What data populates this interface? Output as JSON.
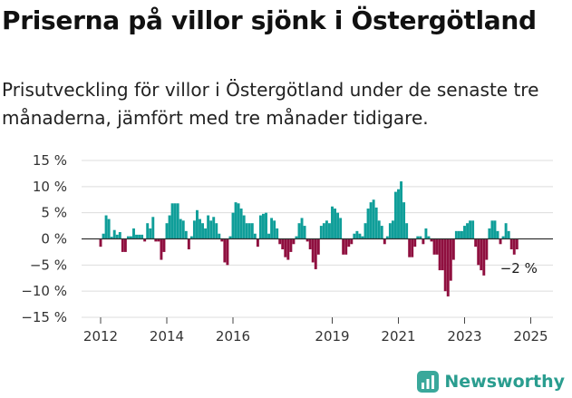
{
  "title": "Priserna på villor sjönk i Östergötland",
  "subtitle": "Prisutveckling för villor i Östergötland under de senaste tre månaderna, jämfört med tre månader tidigare.",
  "brand": {
    "name": "Newsworthy",
    "icon": "newsworthy-logo-icon"
  },
  "colors": {
    "positive": "#0f9e99",
    "negative": "#8f0f3f",
    "grid": "#dddddd",
    "axis": "#333333"
  },
  "chart_data": {
    "type": "bar",
    "title": "",
    "xlabel": "",
    "ylabel": "",
    "unit": "%",
    "ylim": [
      -15,
      15
    ],
    "y_ticks": [
      {
        "value": 15,
        "label": "15 %"
      },
      {
        "value": 10,
        "label": "10 %"
      },
      {
        "value": 5,
        "label": "5 %"
      },
      {
        "value": 0,
        "label": "0 %"
      },
      {
        "value": -5,
        "label": "−5 %"
      },
      {
        "value": -10,
        "label": "−10 %"
      },
      {
        "value": -15,
        "label": "−15 %"
      }
    ],
    "x_ticks": [
      {
        "value": 2012,
        "label": "2012"
      },
      {
        "value": 2014,
        "label": "2014"
      },
      {
        "value": 2016,
        "label": "2016"
      },
      {
        "value": 2019,
        "label": "2019"
      },
      {
        "value": 2021,
        "label": "2021"
      },
      {
        "value": 2023,
        "label": "2023"
      },
      {
        "value": 2025,
        "label": "2025"
      }
    ],
    "grid": true,
    "x_start": 2012.0,
    "period": "month",
    "values": [
      -1.5,
      1.0,
      4.5,
      3.8,
      0.4,
      1.7,
      0.8,
      1.3,
      -2.5,
      -2.5,
      0.5,
      0.5,
      2.0,
      0.8,
      0.8,
      0.8,
      -0.5,
      3.0,
      2.0,
      4.2,
      -0.5,
      -0.5,
      -4.0,
      -2.5,
      3.0,
      4.5,
      6.8,
      6.8,
      6.8,
      3.8,
      3.5,
      1.5,
      -2.0,
      0.5,
      3.5,
      5.5,
      3.8,
      3.0,
      2.0,
      4.5,
      3.5,
      4.2,
      3.0,
      1.0,
      -0.5,
      -4.5,
      -5.0,
      0.5,
      5.0,
      7.0,
      6.8,
      5.8,
      4.5,
      3.0,
      3.0,
      3.0,
      1.0,
      -1.5,
      4.5,
      4.8,
      5.0,
      1.0,
      4.0,
      3.5,
      2.0,
      -1.0,
      -2.0,
      -3.5,
      -4.0,
      -2.5,
      -1.0,
      0.5,
      3.0,
      4.0,
      2.5,
      -0.5,
      -2.0,
      -4.5,
      -5.8,
      -3.0,
      2.5,
      3.0,
      3.5,
      3.0,
      6.2,
      5.8,
      5.0,
      4.0,
      -3.0,
      -3.0,
      -1.5,
      -1.0,
      1.0,
      1.5,
      1.0,
      0.5,
      3.0,
      5.8,
      7.0,
      7.5,
      6.0,
      3.5,
      2.5,
      -1.0,
      0.5,
      3.0,
      3.5,
      9.0,
      9.5,
      11.0,
      7.0,
      3.0,
      -3.5,
      -3.5,
      -1.5,
      0.5,
      0.5,
      -1.0,
      2.0,
      0.5,
      -0.5,
      -3.0,
      -3.0,
      -6.0,
      -6.0,
      -10.0,
      -11.0,
      -8.0,
      -4.0,
      1.5,
      1.5,
      1.5,
      2.5,
      3.0,
      3.5,
      3.5,
      -1.5,
      -5.0,
      -6.0,
      -7.0,
      -4.0,
      2.0,
      3.5,
      3.5,
      1.5,
      -1.0,
      0.5,
      3.0,
      1.5,
      -2.0,
      -3.0,
      -2.0
    ],
    "annotations": [
      {
        "index": 151,
        "value": -2,
        "label": "−2 %"
      }
    ]
  }
}
